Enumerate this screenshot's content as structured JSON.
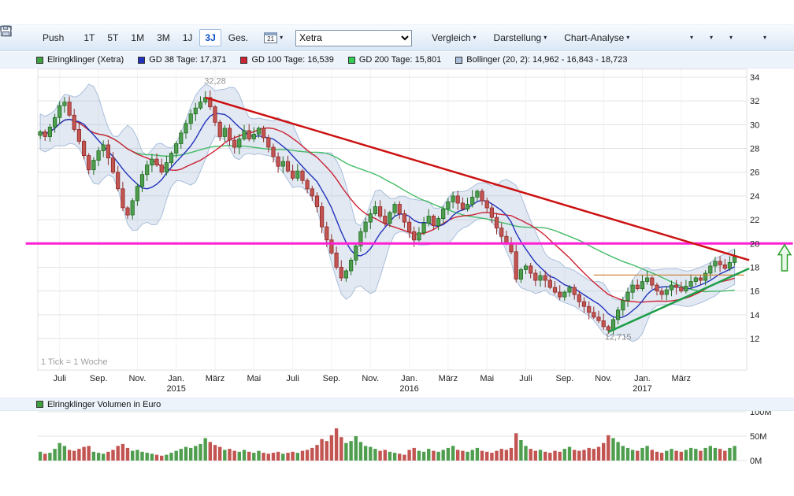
{
  "toolbar": {
    "push_label": "Push",
    "timeframes": [
      {
        "label": "1T"
      },
      {
        "label": "5T"
      },
      {
        "label": "1M"
      },
      {
        "label": "3M"
      },
      {
        "label": "1J"
      },
      {
        "label": "3J",
        "active": true
      },
      {
        "label": "Ges."
      }
    ],
    "calendar_day": "21",
    "exchange": "Xetra",
    "menus": [
      "Vergleich",
      "Darstellung",
      "Chart-Analyse"
    ],
    "icon_buttons": [
      {
        "name": "gear",
        "caret": true
      },
      {
        "name": "chart-tools",
        "caret": true
      },
      {
        "name": "zoom-in",
        "caret": true
      },
      {
        "name": "printer",
        "caret": false
      },
      {
        "name": "save",
        "caret": true
      }
    ]
  },
  "legend": [
    {
      "color": "#3fa03f",
      "label": "Elringklinger (Xetra)"
    },
    {
      "color": "#2233bb",
      "label": "GD 38 Tage: 17,371"
    },
    {
      "color": "#cc2233",
      "label": "GD 100 Tage: 16,539"
    },
    {
      "color": "#33cc55",
      "label": "GD 200 Tage: 15,801"
    },
    {
      "color": "#a9bedb",
      "label": "Bollinger (20, 2): 14,962 - 16,843 - 18,723"
    }
  ],
  "colors": {
    "up": "#4f9e4f",
    "up_border": "#1f6b1f",
    "down": "#c25451",
    "down_border": "#8f2a27",
    "gd38": "#2233bb",
    "gd100": "#cc2233",
    "gd200": "#44bb66",
    "boll_fill": "rgba(160,182,214,0.30)",
    "boll_stroke": "#a9bedb"
  },
  "chart_data": {
    "type": "candlestick",
    "tick_note": "1 Tick = 1 Woche",
    "y_domain": [
      9.35,
      34.66
    ],
    "y_ticks": [
      34,
      32,
      30,
      28,
      26,
      24,
      22,
      20,
      18,
      16,
      14,
      12
    ],
    "x_ticks": [
      {
        "index": 4,
        "label": "Juli"
      },
      {
        "index": 12,
        "label": "Sep."
      },
      {
        "index": 20,
        "label": "Nov."
      },
      {
        "index": 28,
        "label": "Jan.",
        "year": "2015"
      },
      {
        "index": 36,
        "label": "März"
      },
      {
        "index": 44,
        "label": "Mai"
      },
      {
        "index": 52,
        "label": "Juli"
      },
      {
        "index": 60,
        "label": "Sep."
      },
      {
        "index": 68,
        "label": "Nov."
      },
      {
        "index": 76,
        "label": "Jan.",
        "year": "2016"
      },
      {
        "index": 84,
        "label": "März"
      },
      {
        "index": 92,
        "label": "Mai"
      },
      {
        "index": 100,
        "label": "Juli"
      },
      {
        "index": 108,
        "label": "Sep."
      },
      {
        "index": 116,
        "label": "Nov."
      },
      {
        "index": 124,
        "label": "Jan.",
        "year": "2017"
      },
      {
        "index": 132,
        "label": "März"
      }
    ],
    "closes": [
      29.4,
      29.0,
      29.8,
      30.6,
      31.6,
      31.9,
      30.8,
      29.6,
      28.6,
      27.4,
      26.2,
      27.0,
      27.8,
      28.3,
      27.2,
      26.0,
      24.6,
      23.0,
      22.4,
      23.6,
      24.8,
      25.8,
      26.6,
      27.1,
      26.6,
      26.0,
      26.8,
      27.6,
      28.4,
      29.3,
      30.1,
      30.9,
      31.4,
      31.9,
      32.28,
      31.5,
      30.2,
      29.0,
      29.7,
      28.7,
      28.1,
      28.8,
      29.5,
      28.8,
      29.2,
      29.7,
      28.9,
      28.1,
      27.3,
      26.5,
      26.9,
      26.1,
      25.5,
      26.1,
      25.3,
      24.6,
      24.0,
      23.1,
      21.4,
      20.3,
      19.2,
      18.0,
      17.1,
      17.7,
      18.6,
      19.8,
      21.0,
      21.8,
      22.5,
      23.1,
      22.3,
      21.7,
      22.6,
      23.3,
      22.5,
      21.8,
      21.0,
      20.3,
      20.9,
      21.7,
      22.3,
      21.5,
      22.1,
      22.9,
      23.5,
      24.0,
      23.4,
      22.9,
      23.3,
      23.9,
      24.4,
      23.6,
      23.0,
      22.2,
      21.3,
      20.6,
      20.0,
      19.3,
      17.0,
      17.8,
      18.1,
      17.5,
      16.9,
      17.3,
      16.9,
      16.3,
      15.9,
      15.5,
      15.9,
      16.3,
      15.7,
      15.1,
      14.7,
      14.2,
      13.8,
      13.5,
      13.0,
      12.715,
      13.6,
      14.4,
      15.2,
      15.9,
      16.5,
      16.2,
      16.8,
      17.1,
      16.5,
      16.0,
      15.7,
      16.1,
      16.5,
      16.3,
      16.0,
      16.4,
      16.8,
      17.1,
      16.9,
      17.5,
      18.1,
      18.5,
      18.2,
      17.9,
      18.4,
      18.9
    ],
    "volumes_millions": [
      18,
      14,
      16,
      24,
      36,
      30,
      22,
      20,
      24,
      28,
      30,
      18,
      16,
      14,
      18,
      22,
      30,
      34,
      26,
      20,
      22,
      18,
      16,
      14,
      12,
      10,
      12,
      16,
      20,
      24,
      28,
      26,
      30,
      34,
      46,
      38,
      32,
      28,
      22,
      24,
      20,
      18,
      22,
      18,
      16,
      20,
      16,
      14,
      16,
      18,
      14,
      16,
      18,
      16,
      20,
      22,
      26,
      32,
      44,
      40,
      52,
      66,
      48,
      36,
      40,
      50,
      38,
      30,
      28,
      24,
      20,
      22,
      18,
      16,
      14,
      12,
      22,
      26,
      20,
      18,
      24,
      20,
      18,
      22,
      26,
      30,
      22,
      20,
      18,
      22,
      26,
      20,
      18,
      16,
      20,
      24,
      22,
      26,
      56,
      42,
      30,
      24,
      20,
      22,
      18,
      16,
      20,
      18,
      24,
      28,
      22,
      20,
      22,
      26,
      24,
      28,
      36,
      52,
      46,
      38,
      30,
      26,
      22,
      20,
      26,
      30,
      22,
      18,
      16,
      20,
      24,
      20,
      18,
      22,
      26,
      24,
      20,
      26,
      30,
      26,
      24,
      20,
      26,
      30
    ],
    "indicators": {
      "gd38_weeks": 8,
      "gd100_weeks": 20,
      "gd200_weeks": 40,
      "bollinger": {
        "window_weeks": 8,
        "mult": 2
      }
    },
    "trend_lines": [
      {
        "name": "resistance-trend",
        "color": "#cc1111",
        "width": 2.5,
        "from": {
          "index": 34,
          "value": 32.28
        },
        "to": {
          "index": 146,
          "value": 18.6
        }
      },
      {
        "name": "support-trend",
        "color": "#1e9e47",
        "width": 2.5,
        "from": {
          "index": 117,
          "value": 12.55
        },
        "to": {
          "index": 146,
          "value": 17.9
        }
      }
    ],
    "h_lines": [
      {
        "name": "magenta-horizontal",
        "value": 20.0,
        "color": "#ff1fd4",
        "width": 3,
        "from_index": -3,
        "to_index": 155
      },
      {
        "name": "orange-horizontal",
        "value": 17.35,
        "color": "#cc7a29",
        "width": 1.2,
        "from_index": 114,
        "to_index": 145
      }
    ],
    "annotations": [
      {
        "text": "32,28",
        "index": 36,
        "value": 33.45
      },
      {
        "text": "12,715",
        "index": 119,
        "value": 11.9
      }
    ],
    "signal_arrow": {
      "value": 18.8,
      "color": "#2ca02c"
    },
    "volume_axis": {
      "max_millions": 100,
      "ticks": [
        {
          "label": "100M",
          "value": 100
        },
        {
          "label": "50M",
          "value": 50
        },
        {
          "label": "0M",
          "value": 0
        }
      ]
    },
    "volume_legend": {
      "color": "#3fa03f",
      "label": "Elringklinger Volumen in Euro"
    }
  }
}
